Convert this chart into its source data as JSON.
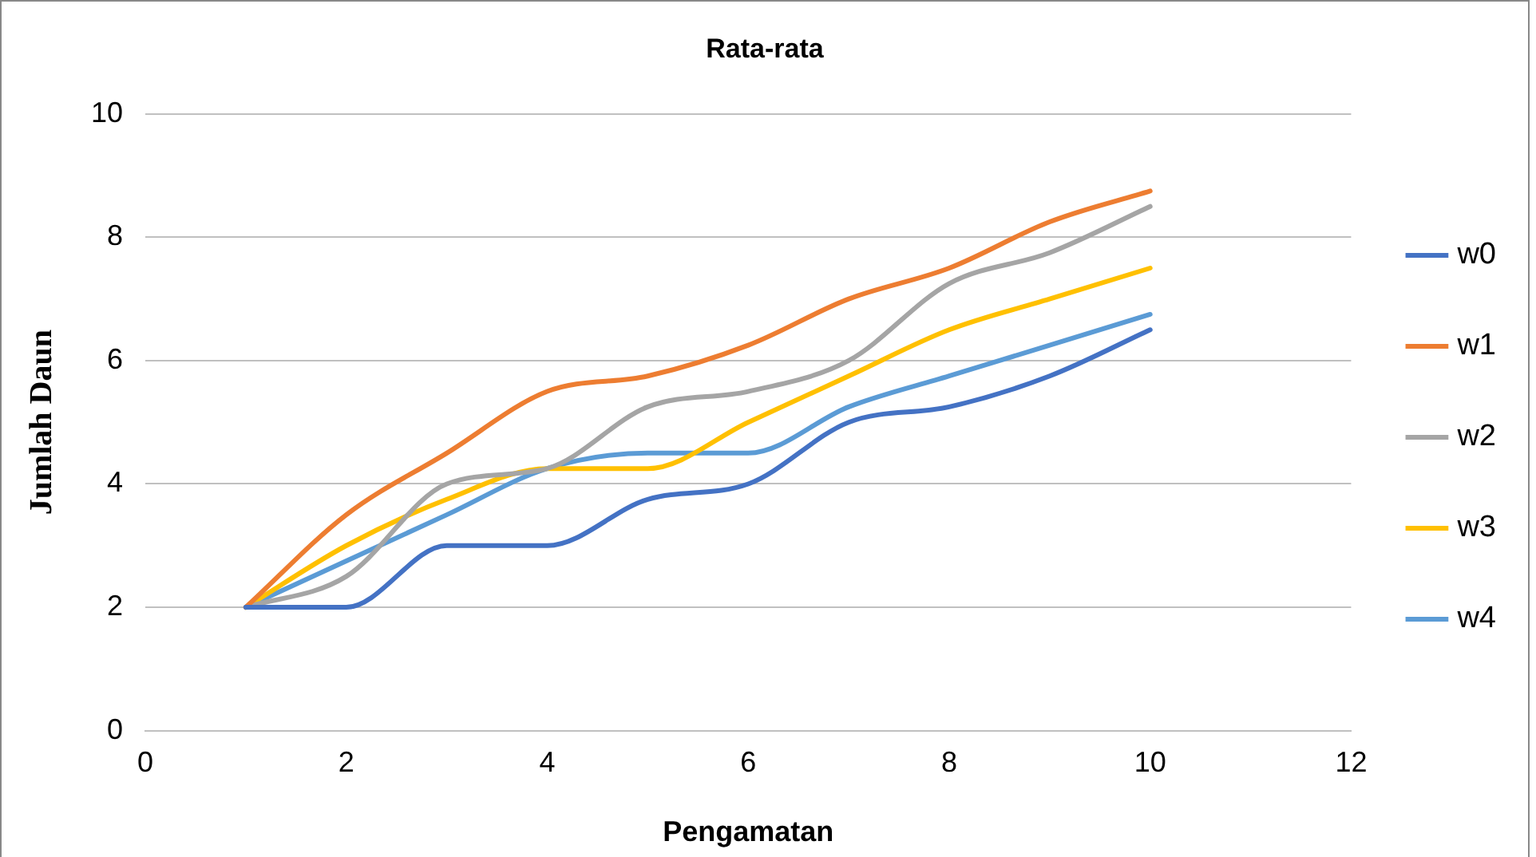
{
  "chart_data": {
    "type": "line",
    "title": "Rata-rata",
    "xlabel": "Pengamatan",
    "ylabel": "Jumlah Daun",
    "x": [
      1,
      2,
      3,
      4,
      5,
      6,
      7,
      8,
      9,
      10
    ],
    "xlim": [
      0,
      12
    ],
    "xticks": [
      0,
      2,
      4,
      6,
      8,
      10,
      12
    ],
    "ylim": [
      0,
      10
    ],
    "yticks": [
      0,
      2,
      4,
      6,
      8,
      10
    ],
    "grid": "y",
    "legend": "right",
    "marker": "none",
    "line_style": "solid",
    "series": [
      {
        "name": "w0",
        "color": "#4472c4",
        "values": [
          2,
          2,
          3,
          3,
          3.75,
          4,
          5,
          5.25,
          5.75,
          6.5
        ]
      },
      {
        "name": "w1",
        "color": "#ed7d31",
        "values": [
          2,
          3.5,
          4.5,
          5.5,
          5.75,
          6.25,
          7,
          7.5,
          8.25,
          8.75
        ]
      },
      {
        "name": "w2",
        "color": "#a5a5a5",
        "values": [
          2,
          2.5,
          4,
          4.25,
          5.25,
          5.5,
          6,
          7.25,
          7.75,
          8.5
        ]
      },
      {
        "name": "w3",
        "color": "#ffc000",
        "values": [
          2,
          3,
          3.75,
          4.25,
          4.25,
          5,
          5.75,
          6.5,
          7,
          7.5
        ]
      },
      {
        "name": "w4",
        "color": "#5b9bd5",
        "values": [
          2,
          2.75,
          3.5,
          4.25,
          4.5,
          4.5,
          5.25,
          5.75,
          6.25,
          6.75
        ]
      }
    ]
  }
}
